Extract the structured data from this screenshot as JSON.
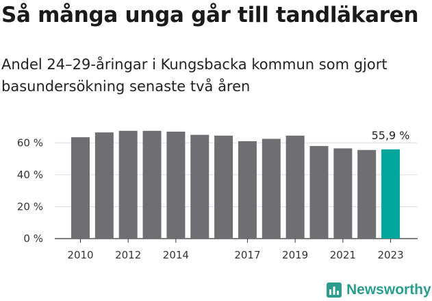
{
  "title": "Så många unga går till tandläkaren",
  "subtitle": "Andel 24–29-åringar i Kungsbacka kommun som gjort basundersökning senaste två åren",
  "brand": {
    "name": "Newsworthy",
    "icon": "chart-icon",
    "color": "#2a9d8f"
  },
  "chart_data": {
    "type": "bar",
    "categories": [
      "2010",
      "2011",
      "2012",
      "2013",
      "2014",
      "2015",
      "2016",
      "2017",
      "2018",
      "2019",
      "2020",
      "2021",
      "2022",
      "2023"
    ],
    "values": [
      63.5,
      66.5,
      67.5,
      67.5,
      67,
      65,
      64.5,
      61,
      62.5,
      64.5,
      58,
      56.5,
      55.5,
      55.9
    ],
    "xtick_labels": [
      "2010",
      "2012",
      "2014",
      "2017",
      "2019",
      "2021",
      "2023"
    ],
    "ytick_labels": [
      "0 %",
      "20 %",
      "40 %",
      "60 %"
    ],
    "yticks": [
      0,
      20,
      40,
      60
    ],
    "ylim": [
      0,
      70
    ],
    "data_labels": [
      {
        "category": "2023",
        "text": "55,9 %"
      }
    ],
    "bar_color": "#6e6e73",
    "highlight_color": "#00a69c",
    "highlight_category": "2023",
    "grid": true
  }
}
